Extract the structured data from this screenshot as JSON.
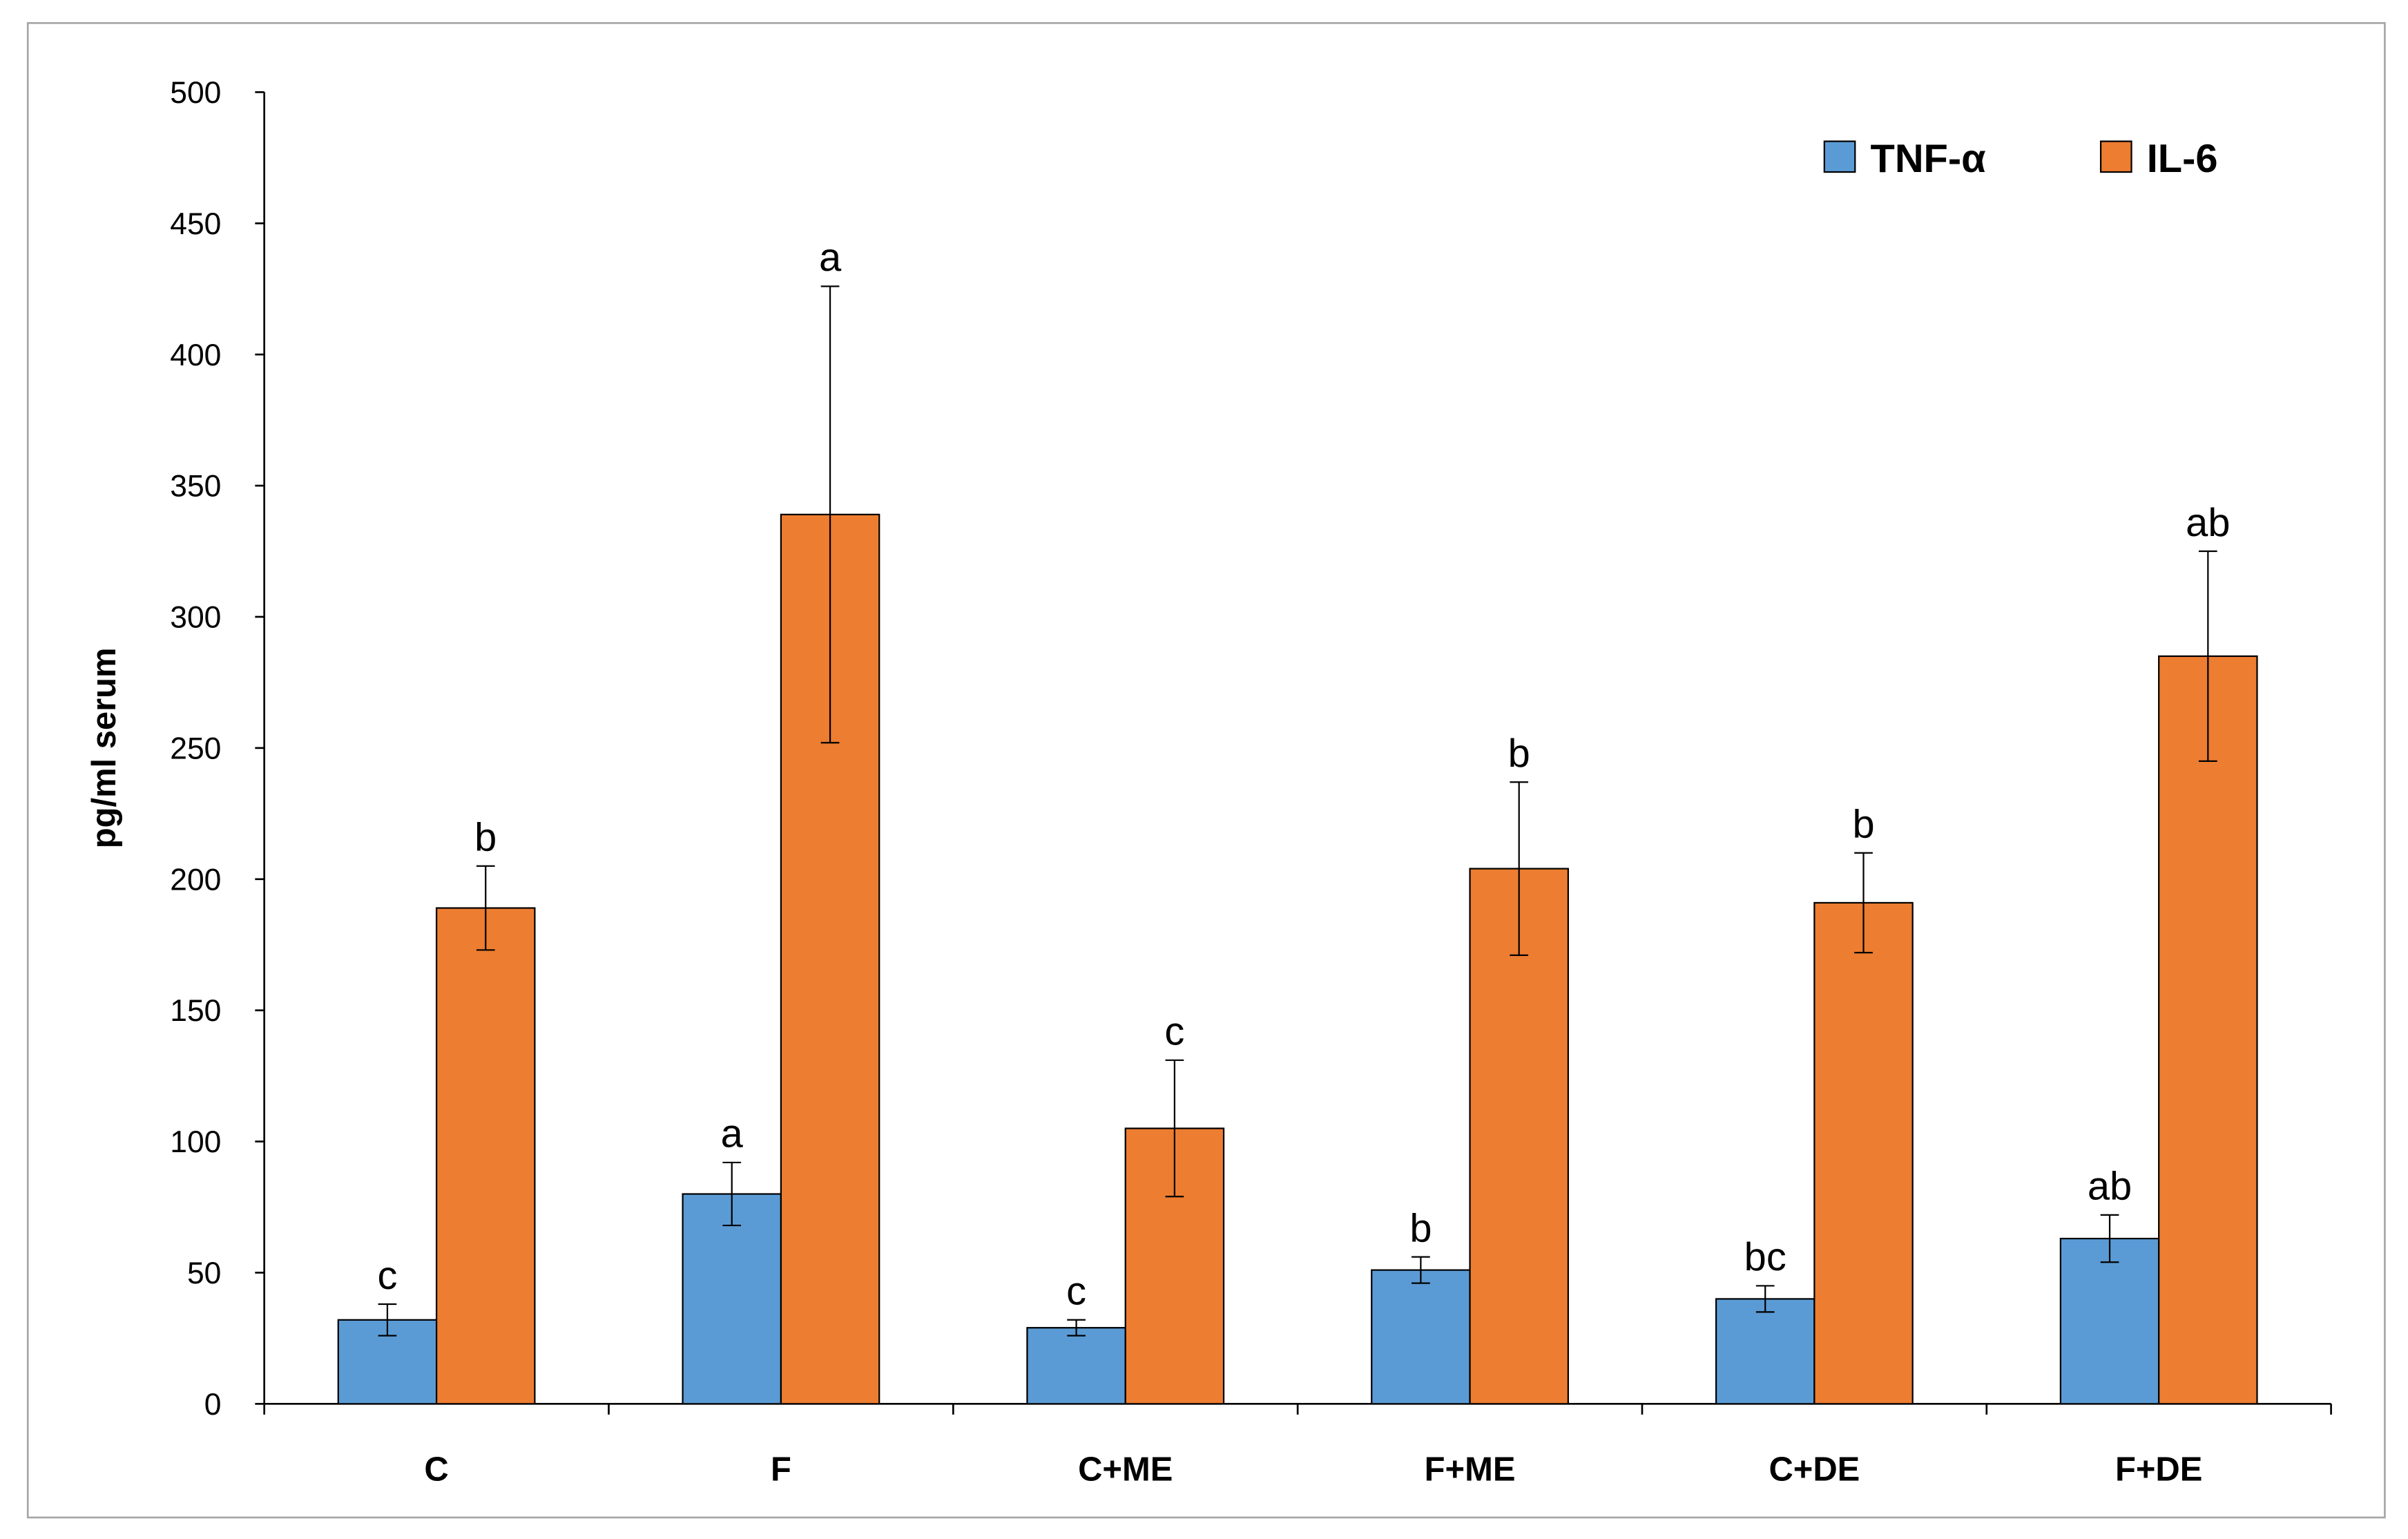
{
  "chart_data": {
    "type": "bar",
    "title": "",
    "xlabel": "",
    "ylabel": "pg/ml serum",
    "ylim": [
      0,
      500
    ],
    "yticks": [
      0,
      50,
      100,
      150,
      200,
      250,
      300,
      350,
      400,
      450,
      500
    ],
    "grid": false,
    "legend_position": "top-right",
    "categories": [
      "C",
      "F",
      "C+ME",
      "F+ME",
      "C+DE",
      "F+DE"
    ],
    "series": [
      {
        "name": "TNF-α",
        "color": "#5b9bd5",
        "values": [
          32,
          80,
          29,
          51,
          40,
          63
        ],
        "errors": [
          6,
          12,
          3,
          5,
          5,
          9
        ],
        "letters": [
          "c",
          "a",
          "c",
          "b",
          "bc",
          "ab"
        ]
      },
      {
        "name": "IL-6",
        "color": "#ed7d31",
        "values": [
          189,
          339,
          105,
          204,
          191,
          285
        ],
        "errors": [
          16,
          87,
          26,
          33,
          19,
          40
        ],
        "letters": [
          "b",
          "a",
          "c",
          "b",
          "b",
          "ab"
        ]
      }
    ]
  }
}
